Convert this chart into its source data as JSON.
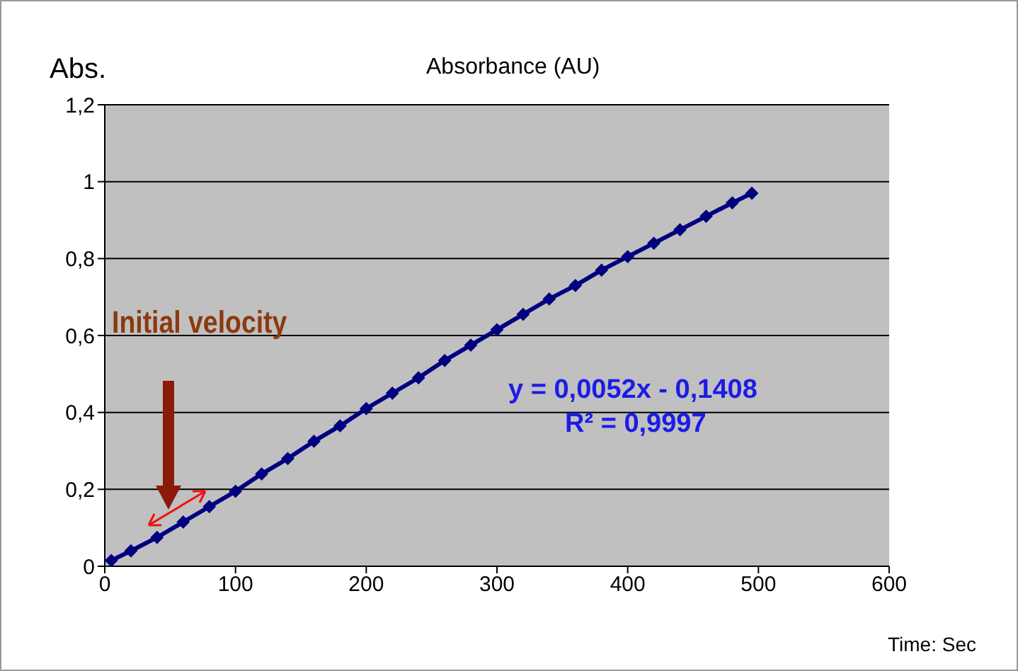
{
  "chart_data": {
    "type": "line",
    "title": "Absorbance (AU)",
    "xlabel": "Time: Sec",
    "ylabel": "Abs.",
    "x": [
      5,
      20,
      40,
      60,
      80,
      100,
      120,
      140,
      160,
      180,
      200,
      220,
      240,
      260,
      280,
      300,
      320,
      340,
      360,
      380,
      400,
      420,
      440,
      460,
      480,
      495
    ],
    "series": [
      {
        "color": "#000080",
        "values": [
          0.015,
          0.04,
          0.075,
          0.115,
          0.155,
          0.195,
          0.24,
          0.28,
          0.325,
          0.365,
          0.41,
          0.45,
          0.49,
          0.535,
          0.575,
          0.615,
          0.655,
          0.695,
          0.73,
          0.77,
          0.805,
          0.84,
          0.875,
          0.91,
          0.945,
          0.97
        ]
      }
    ],
    "xlim": [
      0,
      600
    ],
    "xticks": [
      0,
      100,
      200,
      300,
      400,
      500,
      600
    ],
    "ylim": [
      0,
      1.2
    ],
    "yticks": [
      0,
      {
        "value": 0.2,
        "label": "0,2"
      },
      {
        "value": 0.4,
        "label": "0,4"
      },
      {
        "value": 0.6,
        "label": "0,6"
      },
      {
        "value": 0.8,
        "label": "0,8"
      },
      1,
      {
        "value": 1.2,
        "label": "1,2"
      }
    ],
    "grid": "y",
    "marker": "diamond",
    "line_style": "solid",
    "legend": false,
    "annotations": [
      "Initial velocity",
      "y = 0,0052x - 0,1408",
      "R² = 0,9997"
    ]
  }
}
